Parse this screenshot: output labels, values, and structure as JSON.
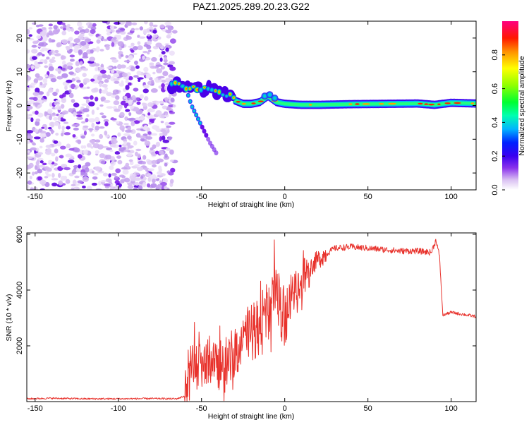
{
  "page_title": "PAZ1.2025.289.20.23.G22",
  "colors": {
    "snr_line": "#e8322c",
    "axis": "#000000",
    "background": "#ffffff",
    "colormap": [
      "#e2d0f5",
      "#c7a4ee",
      "#8a32ec",
      "#5a00e0",
      "#0010ff",
      "#00c8ff",
      "#00ff70",
      "#a0ff00",
      "#ffe000",
      "#ff6000",
      "#ff0000",
      "#ff0070"
    ]
  },
  "chart_data": [
    {
      "type": "heatmap",
      "name": "spectrogram",
      "title": "PAZ1.2025.289.20.23.G22",
      "xlabel": "Height of straight line (km)",
      "ylabel": "Frequency (Hz)",
      "xlim": [
        -155,
        115
      ],
      "ylim": [
        -25,
        25
      ],
      "xticks": [
        -150,
        -100,
        -50,
        0,
        50,
        100
      ],
      "yticks": [
        -20,
        -10,
        0,
        10,
        20
      ],
      "colorbar": {
        "label": "Normalized spectral amplitude",
        "range": [
          0,
          1
        ],
        "ticks": [
          "0.0",
          "0.2",
          "0.4",
          "0.6",
          "0.8"
        ]
      },
      "noise_region_x": [
        -155,
        -68
      ],
      "signal_ridge": {
        "x": [
          -68,
          -64,
          -60,
          -55,
          -50,
          -45,
          -40,
          -35,
          -30,
          -25,
          -20,
          -15,
          -10,
          -5,
          0,
          10,
          20,
          40,
          60,
          80,
          90,
          100,
          115
        ],
        "y": [
          6,
          6.5,
          5,
          6,
          4.5,
          5,
          4,
          3.5,
          1.5,
          0.5,
          0.5,
          1.0,
          2.8,
          1.0,
          0.5,
          0.2,
          0.2,
          0.4,
          0.5,
          0.6,
          0.2,
          0.8,
          0.6
        ]
      },
      "secondary_ridge": {
        "x": [
          -58,
          -56,
          -52,
          -48,
          -45,
          -40
        ],
        "y": [
          3,
          0,
          -4,
          -8,
          -11,
          -15
        ]
      }
    },
    {
      "type": "line",
      "name": "snr",
      "xlabel": "Height of straight line (km)",
      "ylabel": "SNR (10 * v/v)",
      "xlim": [
        -155,
        115
      ],
      "ylim": [
        0,
        6050
      ],
      "xticks": [
        -150,
        -100,
        -50,
        0,
        50,
        100
      ],
      "yticks": [
        2000,
        4000,
        6000
      ],
      "series": [
        {
          "name": "SNR",
          "color": "#e8322c",
          "x": [
            -155,
            -140,
            -120,
            -100,
            -80,
            -65,
            -60,
            -58,
            -55,
            -50,
            -45,
            -40,
            -35,
            -30,
            -25,
            -20,
            -15,
            -10,
            -5,
            0,
            5,
            10,
            15,
            20,
            25,
            30,
            40,
            50,
            60,
            70,
            80,
            88,
            91,
            93,
            95,
            100,
            110,
            115
          ],
          "y": [
            100,
            120,
            100,
            100,
            110,
            100,
            200,
            1100,
            1200,
            1400,
            1500,
            1300,
            1500,
            1800,
            2100,
            2500,
            2800,
            3200,
            3700,
            3000,
            3800,
            4400,
            4800,
            5100,
            5300,
            5500,
            5550,
            5500,
            5450,
            5400,
            5400,
            5350,
            5800,
            5200,
            3100,
            3200,
            3100,
            3050
          ]
        }
      ]
    }
  ]
}
